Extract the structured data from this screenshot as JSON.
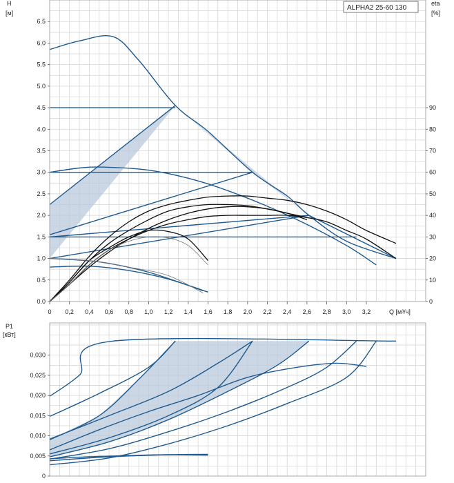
{
  "model_label": "ALPHA2 25-60 130",
  "chart_data": [
    {
      "type": "line",
      "ylabel": "H",
      "yunit": "[м]",
      "y2label": "eta",
      "y2unit": "[%]",
      "xlabel": "Q [м³/ч]",
      "xlim": [
        0,
        3.8
      ],
      "ylim": [
        0,
        7.0
      ],
      "y2lim": [
        0,
        140
      ],
      "grid": true,
      "x_ticks": [
        "0",
        "0,2",
        "0,4",
        "0,6",
        "0,8",
        "1,0",
        "1,2",
        "1,4",
        "1,6",
        "1,8",
        "2,0",
        "2,2",
        "2,4",
        "2,6",
        "2,8",
        "3,0",
        "3,2"
      ],
      "y_ticks": [
        "0.0",
        "0.5",
        "1.0",
        "1.5",
        "2.0",
        "2.5",
        "3.0",
        "3.5",
        "4.0",
        "4.5",
        "5.0",
        "5.5",
        "6.0",
        "6.5"
      ],
      "y2_ticks": [
        "0",
        "10",
        "20",
        "30",
        "40",
        "50",
        "60",
        "70",
        "80",
        "90"
      ],
      "shaded_region": [
        [
          0,
          1.0
        ],
        [
          0,
          2.25
        ],
        [
          1.27,
          4.55
        ],
        [
          2.05,
          3.0
        ],
        [
          2.62,
          2.0
        ],
        [
          0,
          1.5
        ],
        [
          2.62,
          2.0
        ],
        [
          1.27,
          4.55
        ]
      ],
      "head_series": [
        {
          "points": [
            [
              0,
              5.85
            ],
            [
              0.3,
              6.05
            ],
            [
              0.64,
              6.15
            ],
            [
              0.9,
              5.6
            ],
            [
              1.27,
              4.55
            ],
            [
              1.6,
              3.95
            ],
            [
              2.05,
              3.0
            ],
            [
              2.4,
              2.45
            ],
            [
              2.62,
              2.0
            ],
            [
              3.0,
              1.4
            ],
            [
              3.5,
              1.0
            ]
          ]
        },
        {
          "points": [
            [
              0,
              4.5
            ],
            [
              1.27,
              4.5
            ]
          ]
        },
        {
          "points": [
            [
              0,
              2.25
            ],
            [
              1.27,
              4.55
            ]
          ]
        },
        {
          "points": [
            [
              0,
              3.0
            ],
            [
              0.3,
              3.1
            ],
            [
              0.55,
              3.12
            ],
            [
              1.0,
              3.05
            ],
            [
              1.5,
              2.8
            ],
            [
              2.0,
              2.4
            ],
            [
              2.5,
              1.9
            ],
            [
              3.0,
              1.3
            ],
            [
              3.3,
              0.85
            ]
          ]
        },
        {
          "points": [
            [
              0,
              3.0
            ],
            [
              2.05,
              3.0
            ]
          ]
        },
        {
          "points": [
            [
              0,
              1.55
            ],
            [
              2.05,
              3.0
            ]
          ]
        },
        {
          "points": [
            [
              0,
              1.5
            ],
            [
              3.1,
              1.5
            ]
          ]
        },
        {
          "points": [
            [
              0,
              1.0
            ],
            [
              2.62,
              2.0
            ]
          ]
        },
        {
          "points": [
            [
              0,
              1.5
            ],
            [
              2.62,
              2.0
            ]
          ]
        },
        {
          "points": [
            [
              2.62,
              2.0
            ],
            [
              3.5,
              1.0
            ]
          ]
        },
        {
          "points": [
            [
              0,
              0.8
            ],
            [
              0.4,
              0.82
            ],
            [
              0.8,
              0.72
            ],
            [
              1.2,
              0.52
            ],
            [
              1.6,
              0.22
            ]
          ]
        },
        {
          "points": [
            [
              0,
              1.0
            ],
            [
              0.5,
              0.92
            ],
            [
              1.0,
              0.68
            ],
            [
              1.55,
              0.25
            ]
          ]
        }
      ],
      "eta_series": [
        {
          "points": [
            [
              0,
              0
            ],
            [
              0.2,
              8
            ],
            [
              0.4,
              17
            ],
            [
              0.6,
              24
            ],
            [
              0.8,
              29
            ],
            [
              1.0,
              33
            ],
            [
              1.2,
              36
            ],
            [
              1.4,
              38
            ],
            [
              1.6,
              39.5
            ],
            [
              1.8,
              40
            ],
            [
              2.0,
              40
            ],
            [
              2.2,
              40
            ],
            [
              2.4,
              40
            ],
            [
              2.6,
              39
            ],
            [
              2.8,
              37
            ],
            [
              3.0,
              33
            ],
            [
              3.2,
              29
            ],
            [
              3.5,
              20
            ]
          ]
        },
        {
          "points": [
            [
              0,
              0
            ],
            [
              0.2,
              10
            ],
            [
              0.4,
              21
            ],
            [
              0.6,
              30
            ],
            [
              0.8,
              37
            ],
            [
              1.0,
              42
            ],
            [
              1.2,
              45
            ],
            [
              1.4,
              47
            ],
            [
              1.6,
              48.5
            ],
            [
              1.8,
              49
            ],
            [
              2.0,
              49
            ],
            [
              2.2,
              48
            ],
            [
              2.4,
              47
            ],
            [
              2.6,
              45
            ],
            [
              2.8,
              42
            ],
            [
              3.0,
              38
            ],
            [
              3.2,
              33
            ],
            [
              3.5,
              27
            ]
          ]
        },
        {
          "points": [
            [
              0,
              0
            ],
            [
              0.2,
              9
            ],
            [
              0.4,
              19
            ],
            [
              0.6,
              27
            ],
            [
              0.8,
              33
            ],
            [
              1.0,
              38
            ],
            [
              1.2,
              42
            ],
            [
              1.4,
              44
            ],
            [
              1.6,
              45
            ],
            [
              1.8,
              45
            ],
            [
              2.0,
              44.5
            ],
            [
              2.2,
              43
            ],
            [
              2.4,
              41
            ],
            [
              2.6,
              38
            ]
          ]
        },
        {
          "points": [
            [
              0,
              0
            ],
            [
              0.2,
              8
            ],
            [
              0.4,
              16
            ],
            [
              0.6,
              23
            ],
            [
              0.8,
              29
            ],
            [
              1.0,
              34
            ],
            [
              1.2,
              38
            ],
            [
              1.4,
              41
            ],
            [
              1.6,
              43
            ],
            [
              1.8,
              44
            ],
            [
              2.0,
              44
            ],
            [
              2.2,
              43
            ],
            [
              2.4,
              41
            ],
            [
              2.6,
              39
            ]
          ]
        },
        {
          "points": [
            [
              0,
              0
            ],
            [
              0.2,
              9
            ],
            [
              0.4,
              19
            ],
            [
              0.6,
              25
            ],
            [
              0.8,
              30
            ],
            [
              1.0,
              33
            ],
            [
              1.2,
              32.5
            ],
            [
              1.4,
              29
            ],
            [
              1.6,
              19
            ]
          ]
        },
        {
          "points": [
            [
              0,
              0
            ],
            [
              0.2,
              8
            ],
            [
              0.4,
              17
            ],
            [
              0.6,
              24
            ],
            [
              0.8,
              28
            ],
            [
              1.0,
              30
            ],
            [
              1.2,
              29.5
            ],
            [
              1.4,
              26
            ],
            [
              1.6,
              17
            ]
          ],
          "thin": true
        },
        {
          "points": [
            [
              0,
              20
            ],
            [
              0.4,
              19
            ],
            [
              0.8,
              16
            ],
            [
              1.2,
              12
            ],
            [
              1.55,
              4
            ]
          ],
          "thin": true
        }
      ]
    },
    {
      "type": "line",
      "ylabel": "P1",
      "yunit": "[кВт]",
      "xlim": [
        0,
        3.8
      ],
      "ylim": [
        0,
        0.038
      ],
      "grid": true,
      "y_ticks": [
        "0",
        "0,005",
        "0,010",
        "0,015",
        "0,020",
        "0,025",
        "0,030"
      ],
      "shaded_region": [
        [
          0,
          0.0048
        ],
        [
          0.6,
          0.0085
        ],
        [
          1.2,
          0.014
        ],
        [
          1.8,
          0.021
        ],
        [
          2.3,
          0.0275
        ],
        [
          2.62,
          0.0335
        ],
        [
          1.27,
          0.0335
        ],
        [
          0.9,
          0.024
        ],
        [
          0.5,
          0.015
        ],
        [
          0,
          0.009
        ]
      ],
      "power_series": [
        {
          "points": [
            [
              0,
              0.0198
            ],
            [
              0.3,
              0.025
            ],
            [
              0.64,
              0.0335
            ],
            [
              3.5,
              0.0335
            ]
          ]
        },
        {
          "points": [
            [
              0,
              0.0148
            ],
            [
              0.5,
              0.0205
            ],
            [
              1.0,
              0.027
            ],
            [
              1.27,
              0.0335
            ]
          ]
        },
        {
          "points": [
            [
              0,
              0.009
            ],
            [
              0.5,
              0.015
            ],
            [
              0.9,
              0.024
            ],
            [
              1.27,
              0.0335
            ]
          ]
        },
        {
          "points": [
            [
              0,
              0.0092
            ],
            [
              0.6,
              0.015
            ],
            [
              1.2,
              0.021
            ],
            [
              1.7,
              0.028
            ],
            [
              2.05,
              0.0335
            ]
          ]
        },
        {
          "points": [
            [
              0,
              0.0055
            ],
            [
              0.6,
              0.0095
            ],
            [
              1.2,
              0.015
            ],
            [
              1.7,
              0.022
            ],
            [
              2.05,
              0.0335
            ]
          ]
        },
        {
          "points": [
            [
              0,
              0.0048
            ],
            [
              0.6,
              0.0085
            ],
            [
              1.2,
              0.014
            ],
            [
              1.8,
              0.021
            ],
            [
              2.3,
              0.0275
            ],
            [
              2.62,
              0.0335
            ]
          ]
        },
        {
          "points": [
            [
              0,
              0.0042
            ],
            [
              0.6,
              0.0068
            ],
            [
              1.2,
              0.011
            ],
            [
              1.8,
              0.016
            ],
            [
              2.4,
              0.022
            ],
            [
              2.8,
              0.027
            ],
            [
              3.1,
              0.0335
            ]
          ]
        },
        {
          "points": [
            [
              0,
              0.0065
            ],
            [
              0.5,
              0.0115
            ],
            [
              1.0,
              0.016
            ],
            [
              1.5,
              0.02
            ],
            [
              2.0,
              0.0245
            ],
            [
              2.5,
              0.027
            ],
            [
              2.9,
              0.028
            ],
            [
              3.2,
              0.0272
            ]
          ]
        },
        {
          "points": [
            [
              0,
              0.0028
            ],
            [
              0.6,
              0.0045
            ],
            [
              1.2,
              0.008
            ],
            [
              1.8,
              0.0125
            ],
            [
              2.4,
              0.018
            ],
            [
              3.0,
              0.0245
            ],
            [
              3.3,
              0.0335
            ]
          ]
        },
        {
          "points": [
            [
              0,
              0.0038
            ],
            [
              0.4,
              0.0045
            ],
            [
              0.8,
              0.005
            ],
            [
              1.2,
              0.0053
            ],
            [
              1.6,
              0.0054
            ]
          ]
        },
        {
          "points": [
            [
              0,
              0.0043
            ],
            [
              0.4,
              0.0048
            ],
            [
              0.8,
              0.0051
            ],
            [
              1.2,
              0.0053
            ],
            [
              1.6,
              0.0052
            ]
          ]
        }
      ]
    }
  ]
}
